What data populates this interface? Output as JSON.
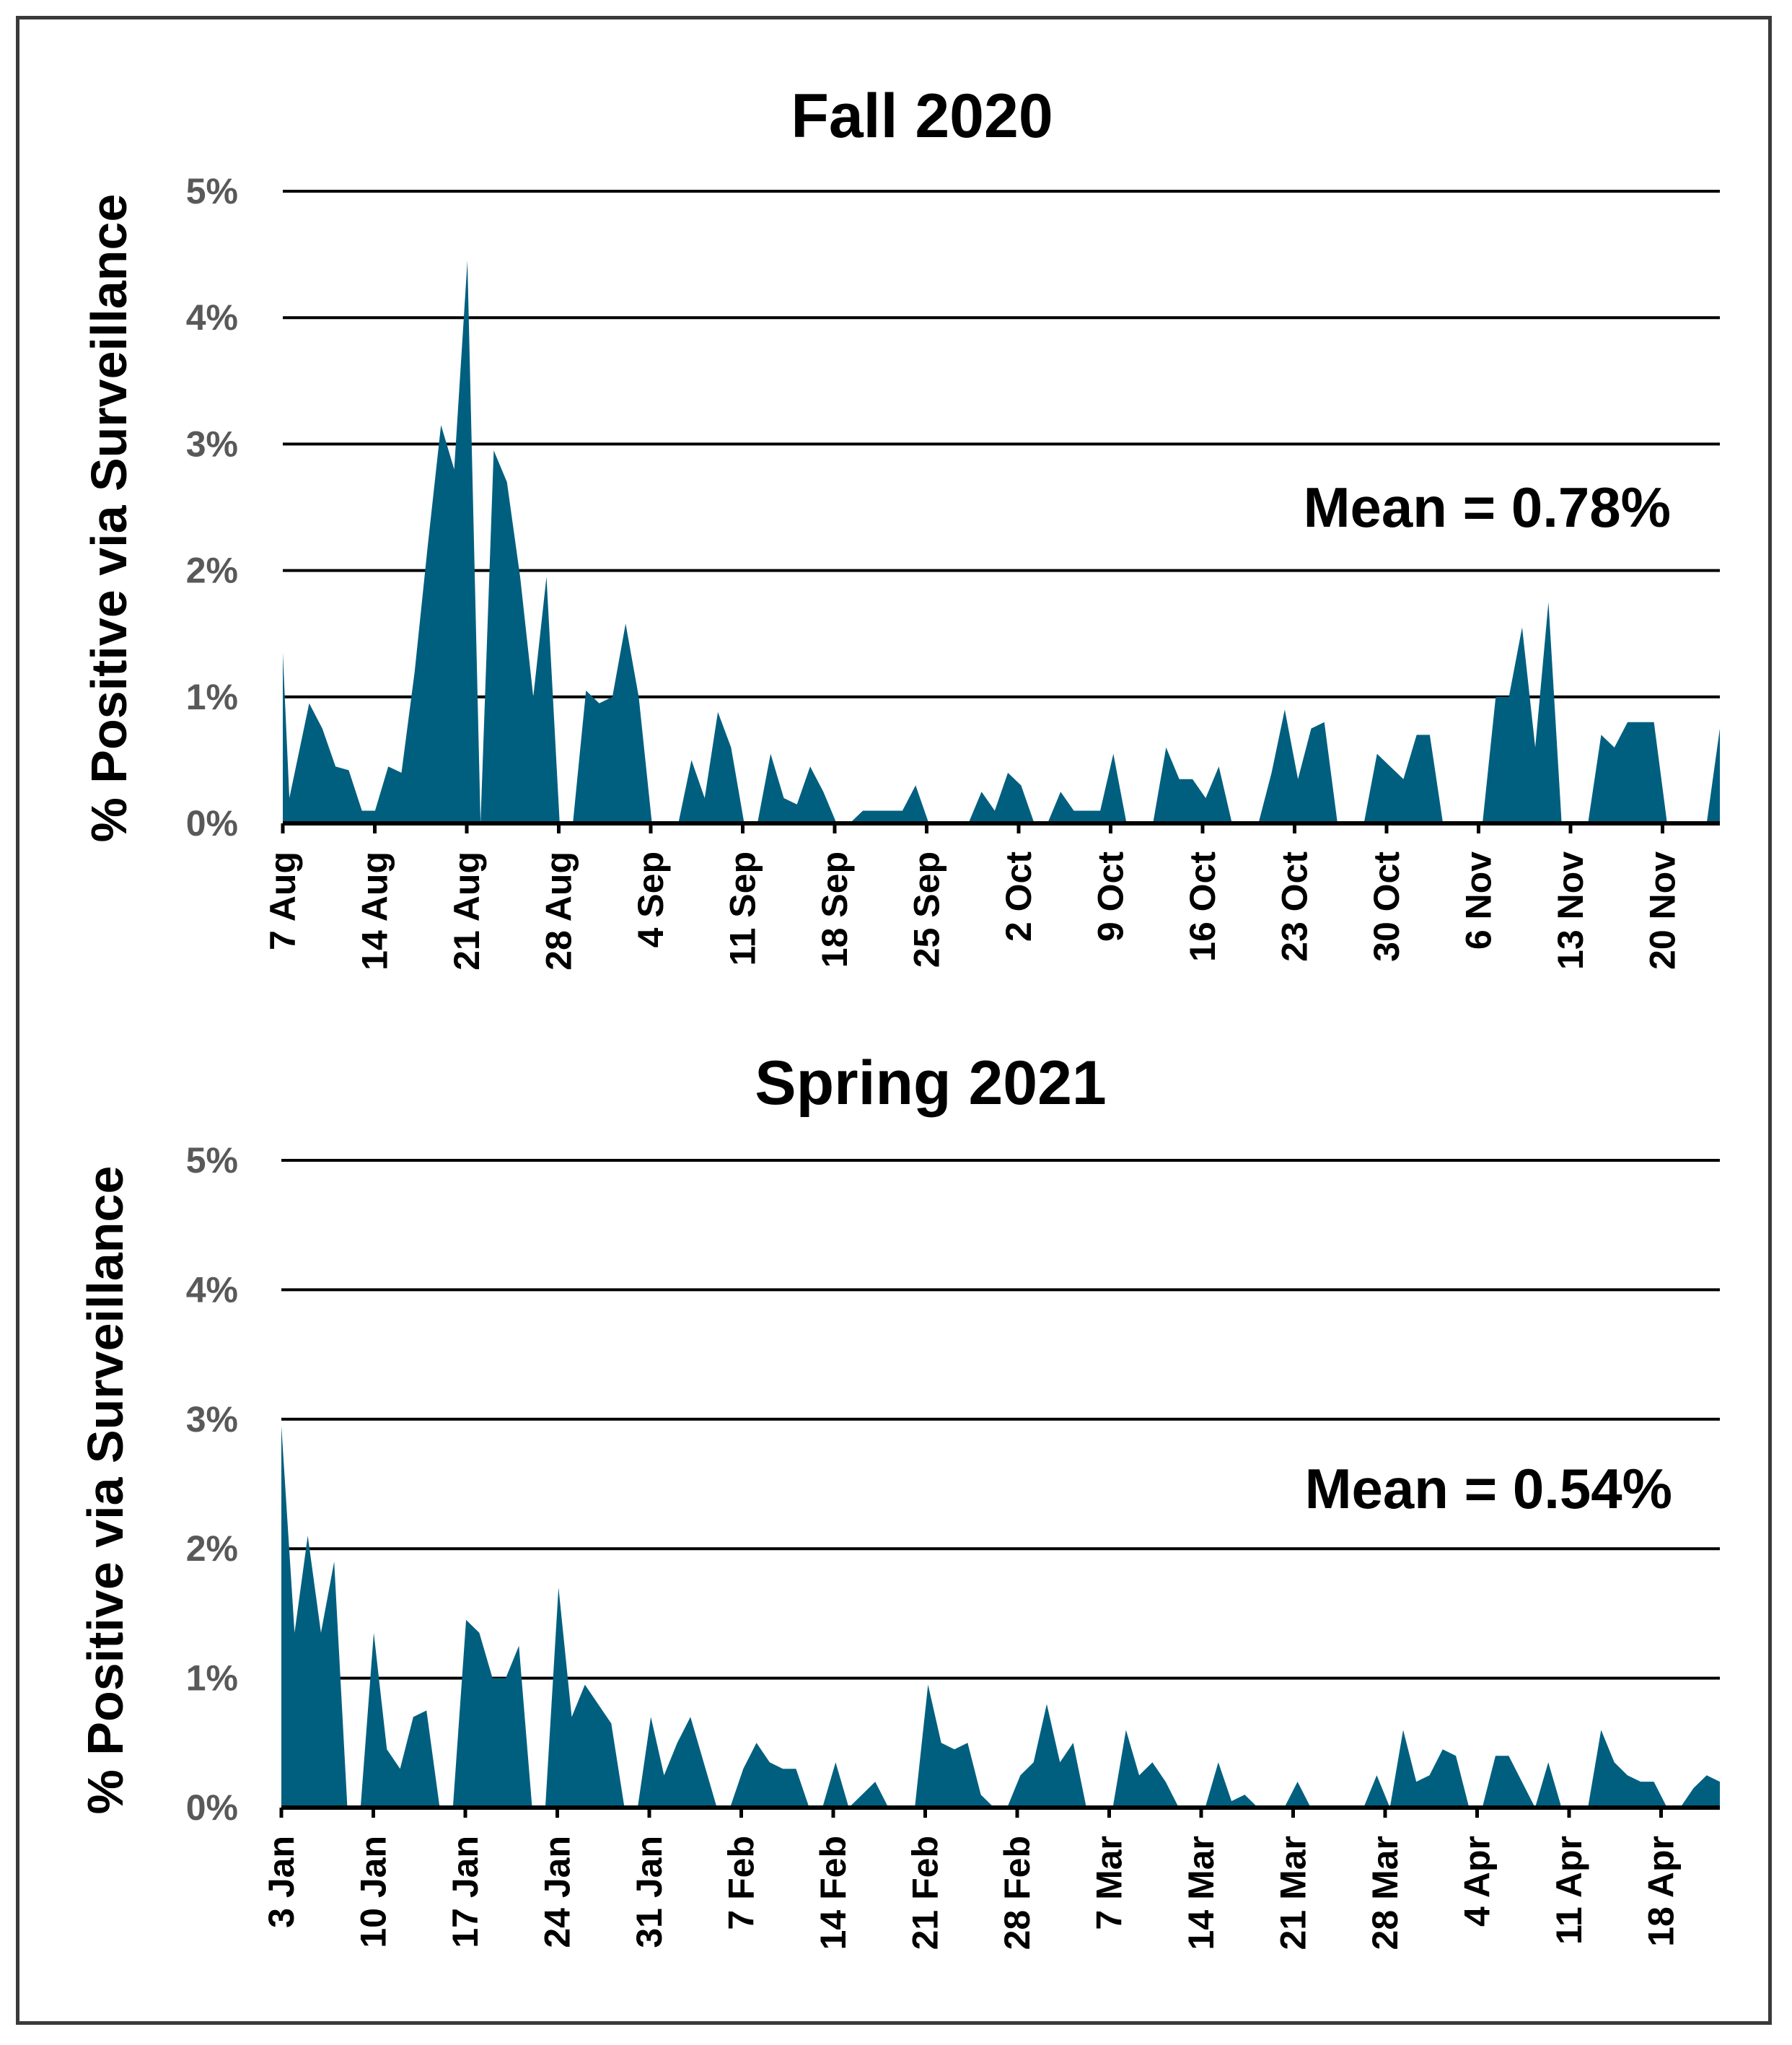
{
  "chart_data": [
    {
      "type": "area",
      "title": "Fall 2020",
      "ylabel": "% Positive via Surveillance",
      "ylim": [
        0,
        5
      ],
      "yticks": [
        "0%",
        "1%",
        "2%",
        "3%",
        "4%",
        "5%"
      ],
      "xticks": [
        "7 Aug",
        "14 Aug",
        "21 Aug",
        "28 Aug",
        "4 Sep",
        "11 Sep",
        "18 Sep",
        "25 Sep",
        "2 Oct",
        "9 Oct",
        "16 Oct",
        "23 Oct",
        "30 Oct",
        "6 Nov",
        "13 Nov",
        "20 Nov"
      ],
      "annotation": "Mean = 0.78%",
      "color": "#005f7f",
      "day_range": [
        0,
        109
      ],
      "series": [
        {
          "name": "% Positive via Surveillance",
          "x": [
            0,
            0.5,
            2,
            3,
            4,
            5,
            6,
            7,
            8,
            9,
            10,
            11,
            12,
            13,
            14,
            15,
            16,
            17,
            18,
            19,
            20,
            21,
            22,
            23,
            24,
            25,
            26,
            27,
            28,
            29,
            30,
            31,
            32,
            33,
            34,
            35,
            36,
            37,
            38,
            39,
            40,
            41,
            42,
            43,
            44,
            45,
            46,
            47,
            48,
            49,
            50,
            51,
            52,
            53,
            54,
            55,
            56,
            57,
            58,
            59,
            60,
            61,
            62,
            63,
            64,
            65,
            66,
            67,
            68,
            69,
            70,
            71,
            72,
            73,
            74,
            75,
            76,
            77,
            78,
            79,
            80,
            81,
            82,
            83,
            84,
            85,
            86,
            87,
            88,
            89,
            90,
            91,
            92,
            93,
            94,
            95,
            96,
            97,
            98,
            99,
            100,
            101,
            102,
            103,
            104,
            105,
            106,
            107,
            108,
            109
          ],
          "values": [
            1.35,
            0.2,
            0.95,
            0.75,
            0.45,
            0.42,
            0.1,
            0.1,
            0.45,
            0.4,
            1.2,
            2.2,
            3.15,
            2.8,
            4.45,
            0.0,
            2.95,
            2.7,
            1.95,
            1.0,
            1.95,
            0.0,
            0.0,
            1.05,
            0.95,
            1.0,
            1.58,
            1.0,
            0.0,
            0.0,
            0.0,
            0.5,
            0.2,
            0.88,
            0.6,
            0.0,
            0.0,
            0.55,
            0.2,
            0.15,
            0.45,
            0.25,
            0.0,
            0.0,
            0.1,
            0.1,
            0.1,
            0.1,
            0.3,
            0.0,
            0.0,
            0.0,
            0.0,
            0.25,
            0.1,
            0.4,
            0.3,
            0.0,
            0.0,
            0.25,
            0.1,
            0.1,
            0.1,
            0.55,
            0.0,
            0.0,
            0.0,
            0.6,
            0.35,
            0.35,
            0.2,
            0.45,
            0.0,
            0.0,
            0.0,
            0.4,
            0.9,
            0.35,
            0.75,
            0.8,
            0.0,
            0.0,
            0.0,
            0.55,
            0.45,
            0.35,
            0.7,
            0.7,
            0.0,
            0.0,
            0.0,
            0.0,
            1.0,
            1.0,
            1.55,
            0.6,
            1.75,
            0.0,
            0.0,
            0.0,
            0.7,
            0.6,
            0.8,
            0.8,
            0.8,
            0.0,
            0.0,
            0.0,
            0.0,
            0.75
          ]
        }
      ]
    },
    {
      "type": "area",
      "title": "Spring 2021",
      "ylabel": "% Positive via Surveillance",
      "ylim": [
        0,
        5
      ],
      "yticks": [
        "0%",
        "1%",
        "2%",
        "3%",
        "4%",
        "5%"
      ],
      "xticks": [
        "3 Jan",
        "10 Jan",
        "17 Jan",
        "24 Jan",
        "31 Jan",
        "7 Feb",
        "14 Feb",
        "21 Feb",
        "28 Feb",
        "7 Mar",
        "14 Mar",
        "21 Mar",
        "28 Mar",
        "4 Apr",
        "11 Apr",
        "18 Apr"
      ],
      "annotation": "Mean = 0.54%",
      "color": "#005f7f",
      "day_range": [
        0,
        109
      ],
      "series": [
        {
          "name": "% Positive via Surveillance",
          "x": [
            0,
            1,
            2,
            3,
            4,
            5,
            6,
            7,
            8,
            9,
            10,
            11,
            12,
            13,
            14,
            15,
            16,
            17,
            18,
            19,
            20,
            21,
            22,
            23,
            24,
            25,
            26,
            27,
            28,
            29,
            30,
            31,
            32,
            33,
            34,
            35,
            36,
            37,
            38,
            39,
            40,
            41,
            42,
            43,
            44,
            45,
            46,
            47,
            48,
            49,
            50,
            51,
            52,
            53,
            54,
            55,
            56,
            57,
            58,
            59,
            60,
            61,
            62,
            63,
            64,
            65,
            66,
            67,
            68,
            69,
            70,
            71,
            72,
            73,
            74,
            75,
            76,
            77,
            78,
            79,
            80,
            81,
            82,
            83,
            84,
            85,
            86,
            87,
            88,
            89,
            90,
            91,
            92,
            93,
            94,
            95,
            96,
            97,
            98,
            99,
            100,
            101,
            102,
            103,
            104,
            105,
            106,
            107,
            108,
            109
          ],
          "values": [
            2.95,
            1.35,
            2.1,
            1.35,
            1.9,
            0.0,
            0.0,
            1.35,
            0.45,
            0.3,
            0.7,
            0.75,
            0.0,
            0.0,
            1.45,
            1.35,
            1.0,
            1.0,
            1.25,
            0.0,
            0.0,
            1.7,
            0.7,
            0.95,
            0.8,
            0.65,
            0.0,
            0.0,
            0.7,
            0.25,
            0.5,
            0.7,
            0.35,
            0.0,
            0.0,
            0.3,
            0.5,
            0.35,
            0.3,
            0.3,
            0.0,
            0.0,
            0.35,
            0.0,
            0.1,
            0.2,
            0.0,
            0.0,
            0.0,
            0.95,
            0.5,
            0.45,
            0.5,
            0.1,
            0.0,
            0.0,
            0.25,
            0.35,
            0.8,
            0.35,
            0.5,
            0.0,
            0.0,
            0.0,
            0.6,
            0.25,
            0.35,
            0.2,
            0.0,
            0.0,
            0.0,
            0.35,
            0.05,
            0.1,
            0.0,
            0.0,
            0.0,
            0.2,
            0.0,
            0.0,
            0.0,
            0.0,
            0.0,
            0.25,
            0.0,
            0.6,
            0.2,
            0.25,
            0.45,
            0.4,
            0.0,
            0.0,
            0.4,
            0.4,
            0.2,
            0.0,
            0.35,
            0.0,
            0.0,
            0.0,
            0.6,
            0.35,
            0.25,
            0.2,
            0.2,
            0.0,
            0.0,
            0.15,
            0.25,
            0.2
          ]
        }
      ]
    }
  ]
}
